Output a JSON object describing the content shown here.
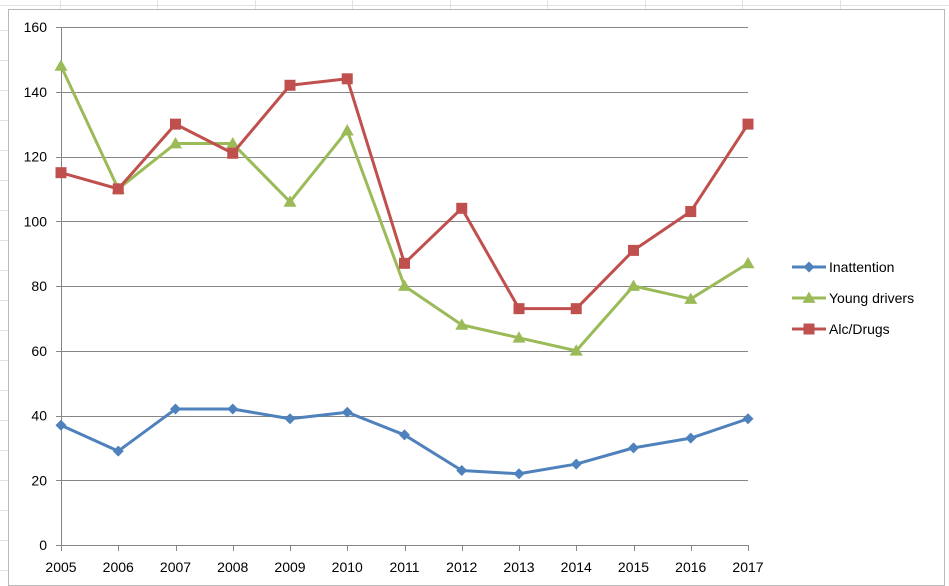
{
  "chart_data": {
    "type": "line",
    "title": "",
    "xlabel": "",
    "ylabel": "",
    "x": [
      "2005",
      "2006",
      "2007",
      "2008",
      "2009",
      "2010",
      "2011",
      "2012",
      "2013",
      "2014",
      "2015",
      "2016",
      "2017"
    ],
    "ylim": [
      0,
      160
    ],
    "yticks": [
      0,
      20,
      40,
      60,
      80,
      100,
      120,
      140,
      160
    ],
    "grid": true,
    "legend_position": "right",
    "series": [
      {
        "name": "Inattention",
        "color": "#4f81bd",
        "marker": "diamond",
        "values": [
          37,
          29,
          42,
          42,
          39,
          41,
          34,
          23,
          22,
          25,
          30,
          33,
          39
        ]
      },
      {
        "name": "Young drivers",
        "color": "#9bbb59",
        "marker": "triangle",
        "values": [
          148,
          110,
          124,
          124,
          106,
          128,
          80,
          68,
          64,
          60,
          80,
          76,
          87
        ]
      },
      {
        "name": "Alc/Drugs",
        "color": "#c0504d",
        "marker": "square",
        "values": [
          115,
          110,
          130,
          121,
          142,
          144,
          87,
          104,
          73,
          73,
          91,
          103,
          130
        ]
      }
    ]
  }
}
